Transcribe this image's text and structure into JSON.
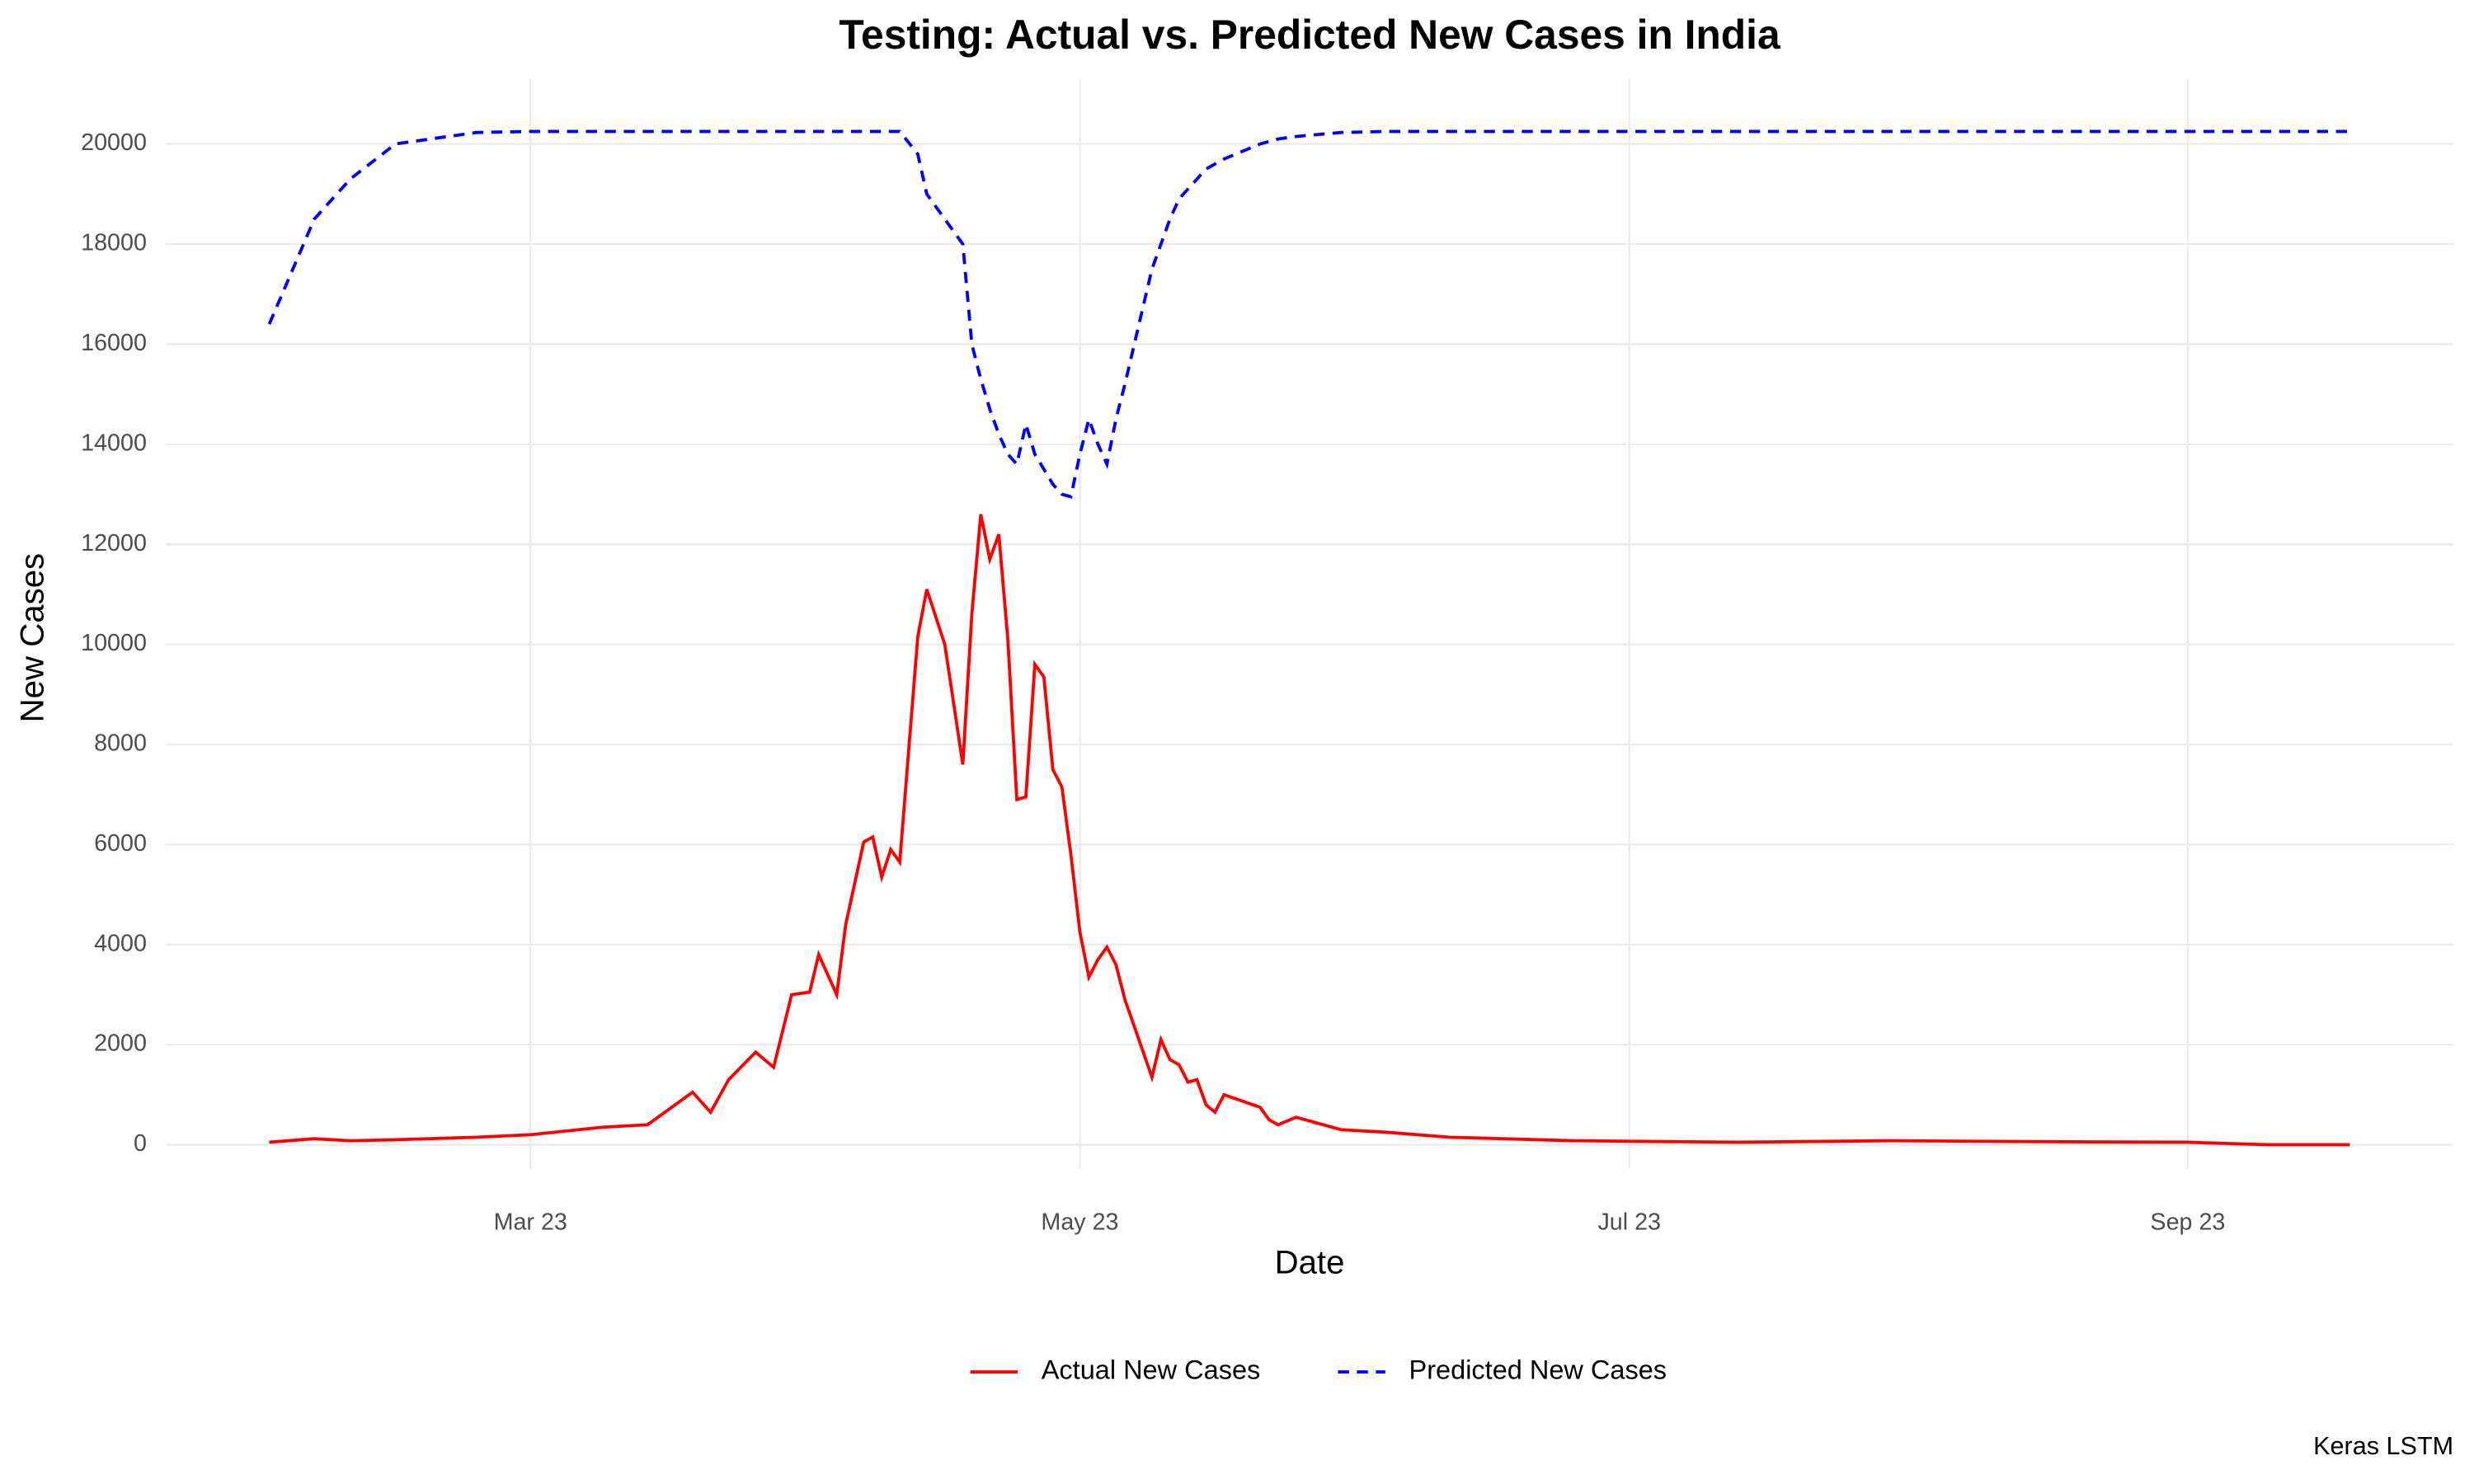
{
  "chart_data": {
    "type": "line",
    "title": "Testing: Actual vs. Predicted New Cases in India",
    "x_label": "Date",
    "y_label": "New Cases",
    "caption": "Keras LSTM",
    "x": [
      31,
      36,
      40,
      45,
      54,
      60,
      68,
      73,
      78,
      80,
      82,
      85,
      87,
      89,
      91,
      92,
      94,
      95,
      97,
      98,
      99,
      100,
      101,
      103,
      104,
      106,
      108,
      109,
      110,
      111,
      112,
      113,
      114,
      115,
      116,
      117,
      118,
      119,
      120,
      121,
      122,
      123,
      124,
      125,
      126,
      129,
      130,
      131,
      132,
      133,
      134,
      135,
      136,
      137,
      141,
      142,
      143,
      145,
      150,
      155,
      162,
      176,
      194,
      211,
      229,
      244,
      253,
      262
    ],
    "series": [
      {
        "name": "Actual New Cases",
        "color": "#ff0000",
        "linestyle": "solid",
        "values": [
          50,
          120,
          80,
          100,
          150,
          200,
          350,
          400,
          1050,
          650,
          1300,
          1850,
          1550,
          3000,
          3050,
          3800,
          3000,
          4400,
          6050,
          6150,
          5350,
          5900,
          5650,
          10150,
          11100,
          10000,
          7600,
          10600,
          12600,
          11700,
          12200,
          10100,
          6900,
          6950,
          9600,
          9350,
          7500,
          7150,
          5800,
          4250,
          3350,
          3700,
          3950,
          3600,
          2900,
          1350,
          2100,
          1700,
          1600,
          1250,
          1300,
          800,
          650,
          1000,
          750,
          500,
          400,
          550,
          300,
          250,
          150,
          80,
          50,
          80,
          60,
          50,
          0,
          0
        ]
      },
      {
        "name": "Predicted New Cases",
        "color": "#0000ff",
        "linestyle": "dashed",
        "values": [
          16400,
          18500,
          19300,
          20000,
          20230,
          20250,
          20250,
          20250,
          20250,
          20250,
          20250,
          20250,
          20250,
          20250,
          20250,
          20250,
          20250,
          20250,
          20250,
          20250,
          20250,
          20250,
          20250,
          19800,
          19000,
          18500,
          18000,
          16000,
          15300,
          14700,
          14200,
          13800,
          13600,
          14400,
          13800,
          13500,
          13200,
          13000,
          12950,
          13800,
          14500,
          14000,
          13600,
          14500,
          15200,
          17500,
          18000,
          18500,
          18900,
          19100,
          19300,
          19500,
          19600,
          19700,
          20000,
          20050,
          20100,
          20150,
          20230,
          20250,
          20250,
          20250,
          20250,
          20250,
          20250,
          20250,
          20250,
          20250
        ]
      }
    ],
    "xlim": [
      19.5,
      273.5
    ],
    "xticks": [
      {
        "value": 60,
        "label": "Mar 23"
      },
      {
        "value": 121,
        "label": "May 23"
      },
      {
        "value": 182,
        "label": "Jul 23"
      },
      {
        "value": 244,
        "label": "Sep 23"
      }
    ],
    "ylim": [
      -470,
      21300
    ],
    "yticks": [
      0,
      2000,
      4000,
      6000,
      8000,
      10000,
      12000,
      14000,
      16000,
      18000,
      20000
    ],
    "grid": true,
    "legend": "bottom"
  }
}
